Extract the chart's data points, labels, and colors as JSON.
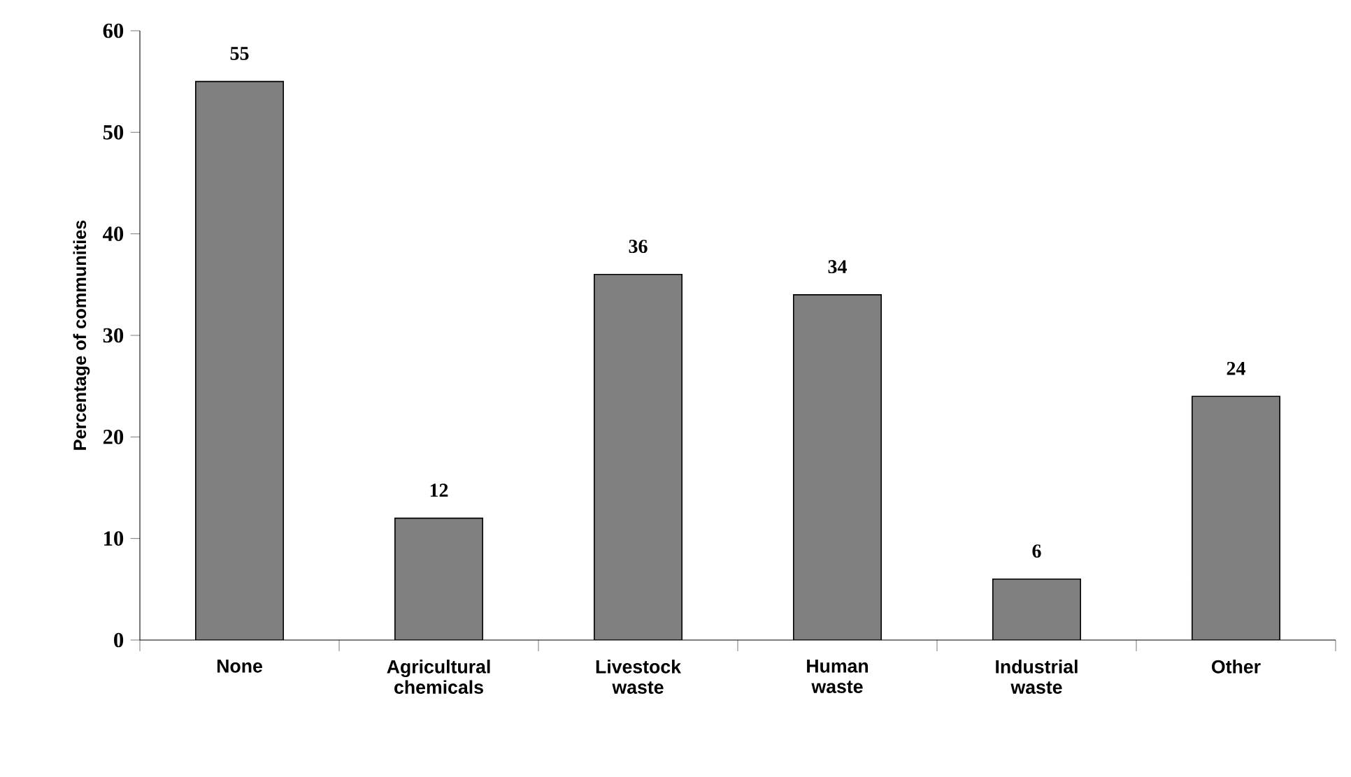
{
  "chart_data": {
    "type": "bar",
    "ylabel": "Percentage of communities",
    "categories": [
      "None",
      "Agricultural chemicals",
      "Livestock waste",
      "Human waste",
      "Industrial waste",
      "Other"
    ],
    "values": [
      55,
      12,
      36,
      34,
      6,
      24
    ],
    "color": "#808080",
    "ylim": [
      0,
      60
    ],
    "yticks": [
      0,
      10,
      20,
      30,
      40,
      50,
      60
    ],
    "data_labels": true
  }
}
